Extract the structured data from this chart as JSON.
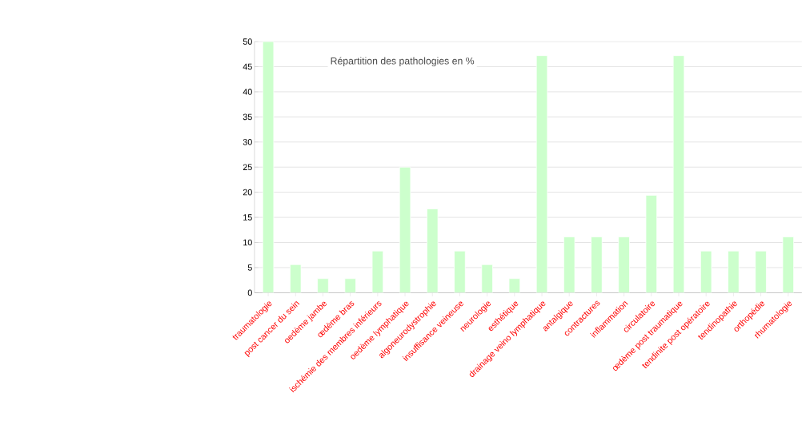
{
  "chart_data": {
    "type": "bar",
    "title": "Répartition des pathologies en %",
    "categories": [
      "traumatologie",
      "post cancer du sein",
      "oedème jambe",
      "œdème bras",
      "ischémie des membres inférieurs",
      "oedème lymphatique",
      "algoneurodystrophie",
      "insuffisance veineuse",
      "neurologie",
      "esthétique",
      "drainage veino lymphatique",
      "antalgique",
      "contractures",
      "inflammation",
      "circulatoire",
      "œdème post traumatique",
      "tendinite post opératoire",
      "tendinopathie",
      "orthopédie",
      "rhumatologie"
    ],
    "values": [
      50,
      5.6,
      2.8,
      2.8,
      8.3,
      25,
      16.7,
      8.3,
      5.6,
      2.8,
      47.2,
      11.1,
      11.1,
      11.1,
      19.4,
      47.2,
      8.3,
      8.3,
      8.3,
      11.1
    ],
    "color": "#ccffcc",
    "ylim": [
      0,
      50
    ],
    "yticks": [
      0,
      5,
      10,
      15,
      20,
      25,
      30,
      35,
      40,
      45,
      50
    ],
    "grid": "y"
  }
}
